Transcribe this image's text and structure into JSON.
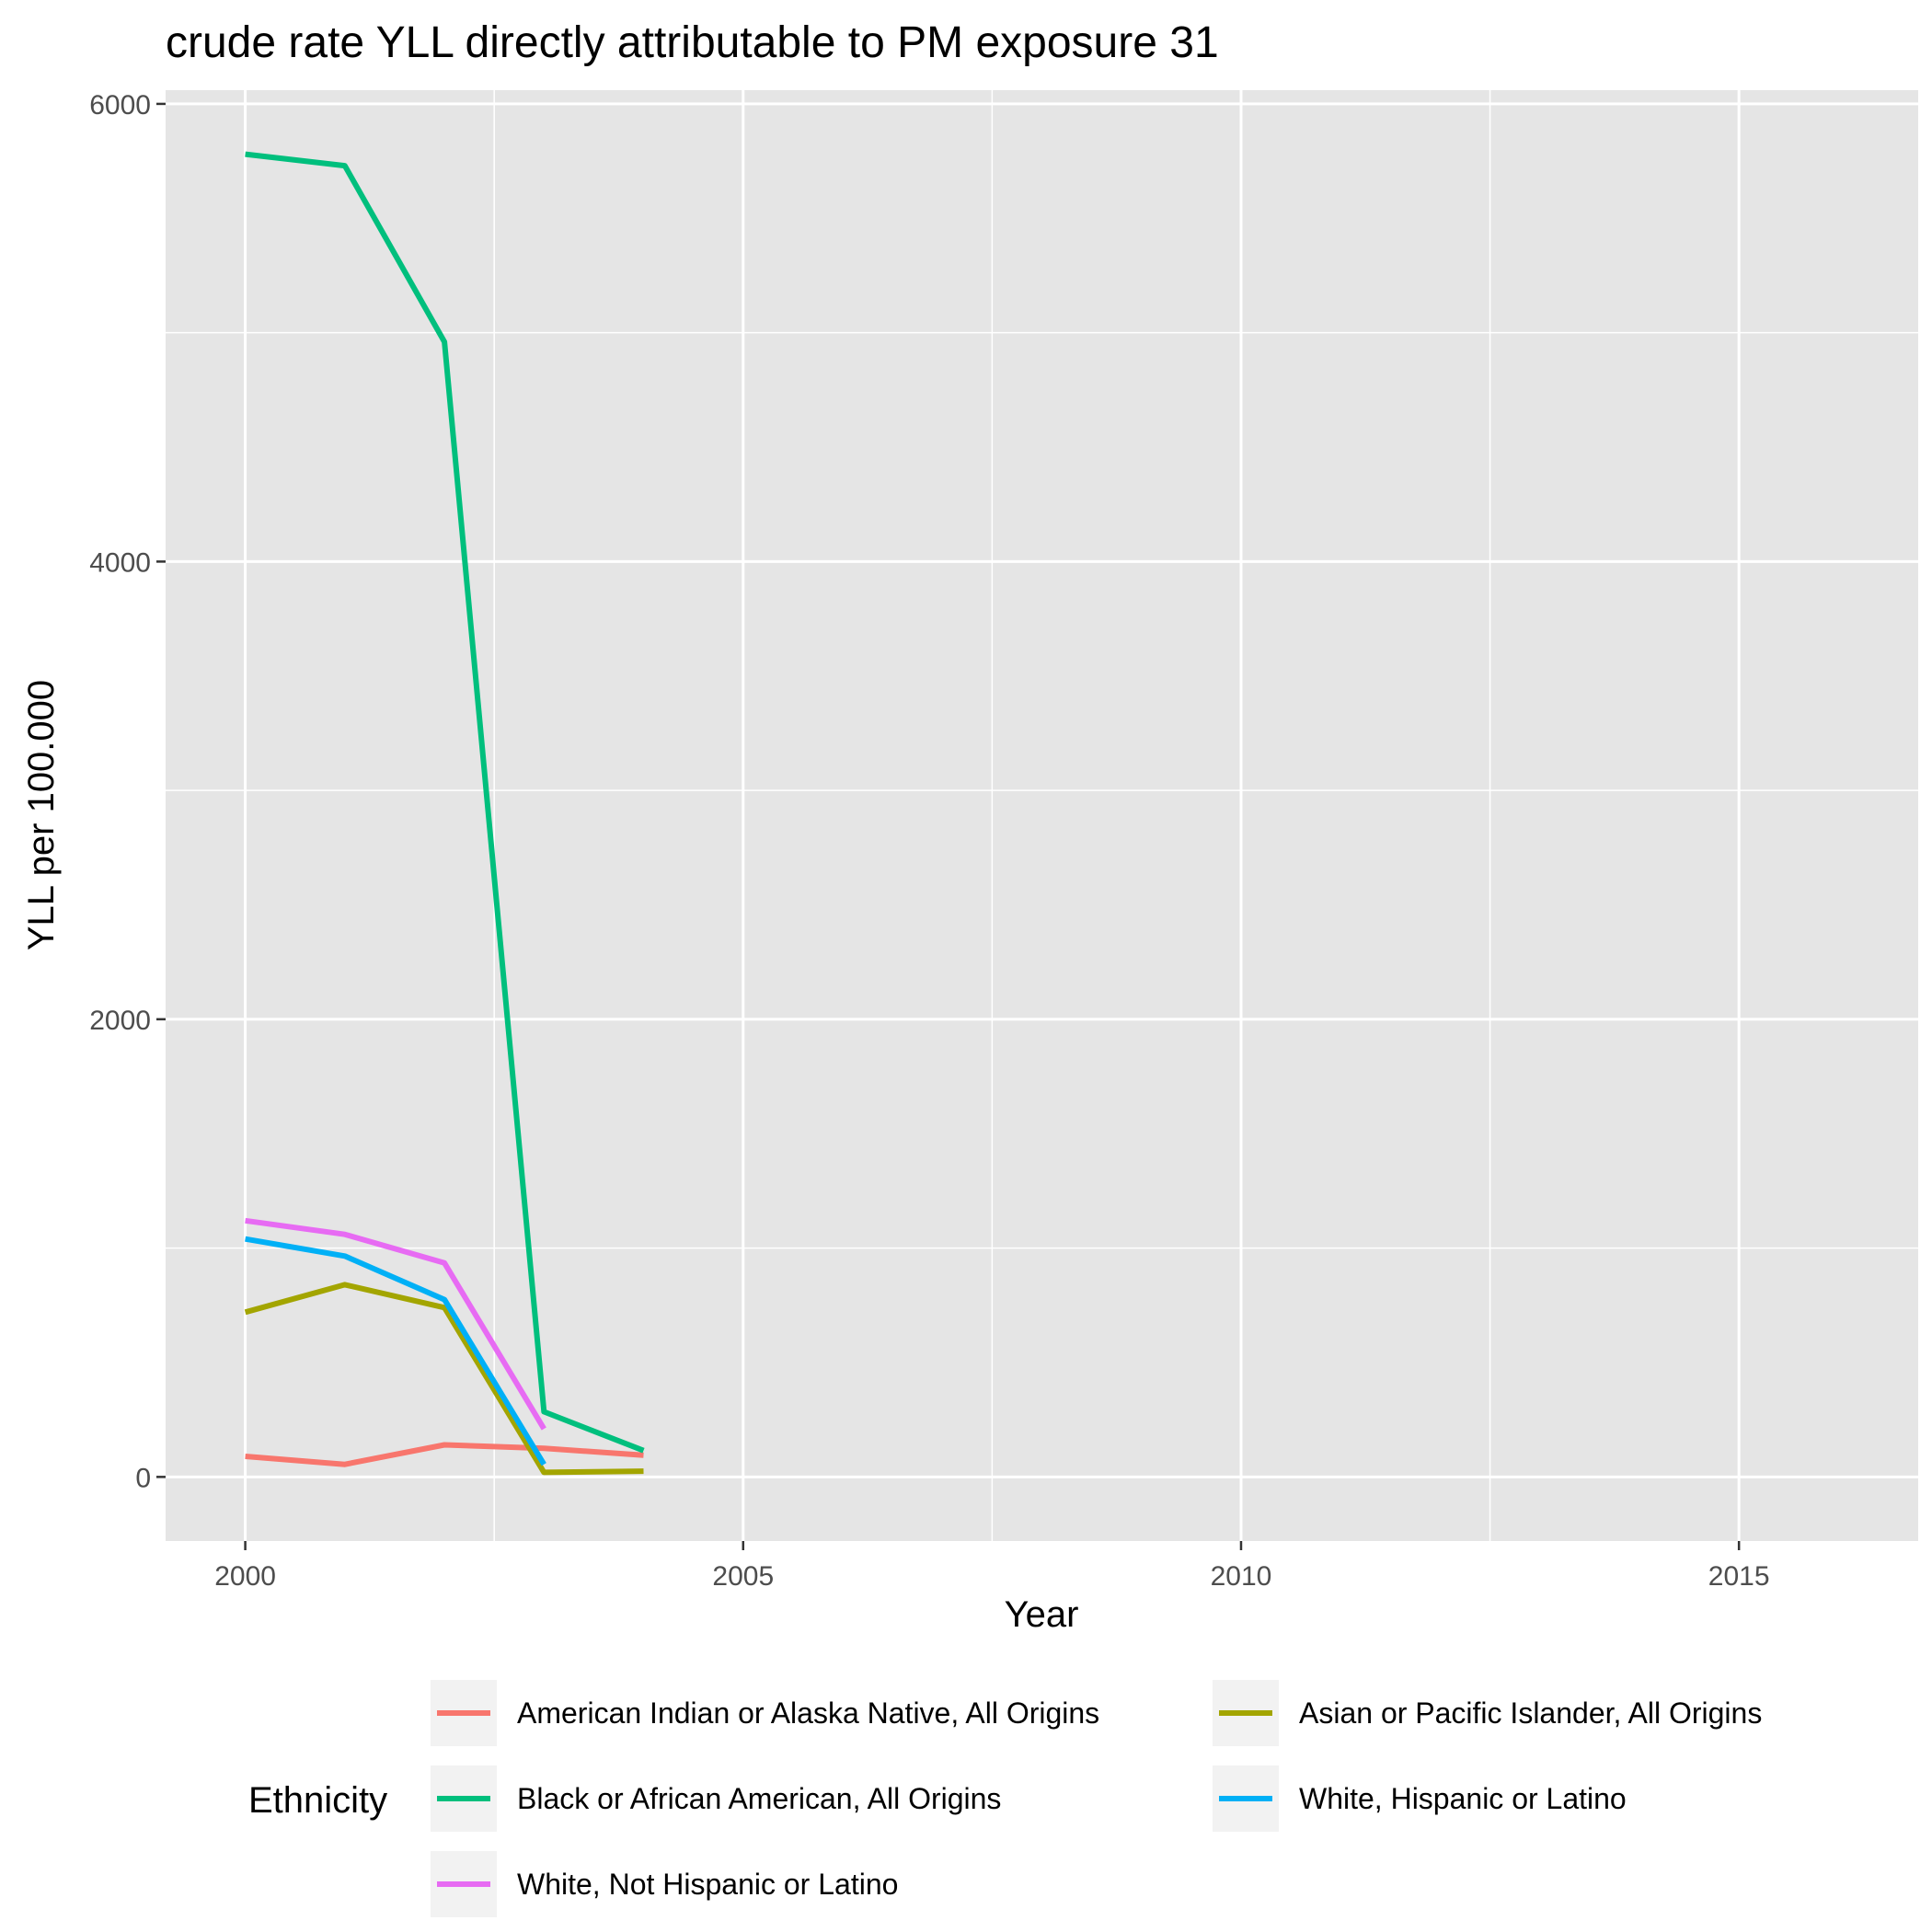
{
  "chart_data": {
    "type": "line",
    "title": "crude rate YLL directly attributable to PM exposure 31",
    "xlabel": "Year",
    "ylabel": "YLL per 100.000",
    "xlim": [
      1999.2,
      2016.8
    ],
    "ylim": [
      -280,
      6060
    ],
    "x_ticks": [
      2000,
      2005,
      2010,
      2015
    ],
    "y_ticks": [
      0,
      2000,
      4000,
      6000
    ],
    "grid": true,
    "legend_title": "Ethnicity",
    "legend_position": "bottom",
    "series": [
      {
        "name": "American Indian or Alaska Native, All Origins",
        "color": "#F8766D",
        "x": [
          2000,
          2001,
          2002,
          2003,
          2004
        ],
        "y": [
          90,
          55,
          140,
          125,
          95
        ]
      },
      {
        "name": "Asian or Pacific Islander, All Origins",
        "color": "#A3A500",
        "x": [
          2000,
          2001,
          2002,
          2003,
          2004
        ],
        "y": [
          720,
          840,
          740,
          20,
          25
        ]
      },
      {
        "name": "Black or African American, All Origins",
        "color": "#00BF7D",
        "x": [
          2000,
          2001,
          2002,
          2003,
          2004
        ],
        "y": [
          5780,
          5730,
          4960,
          285,
          115
        ]
      },
      {
        "name": "White, Hispanic or Latino",
        "color": "#00B0F6",
        "x": [
          2000,
          2001,
          2002,
          2003
        ],
        "y": [
          1040,
          965,
          775,
          55
        ]
      },
      {
        "name": "White, Not Hispanic or Latino",
        "color": "#E76BF3",
        "x": [
          2000,
          2001,
          2002,
          2003
        ],
        "y": [
          1120,
          1060,
          935,
          210
        ]
      }
    ]
  }
}
